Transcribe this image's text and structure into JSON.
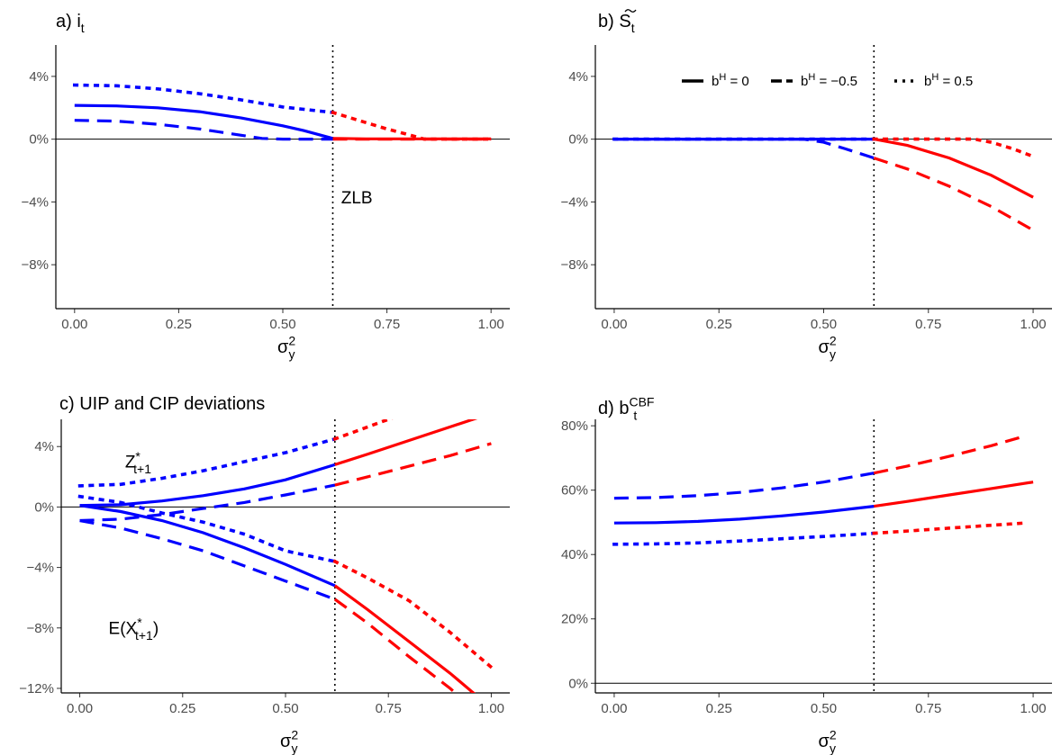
{
  "colors": {
    "pre_zlb": "#0000ff",
    "post_zlb": "#ff0000",
    "axis": "#000000",
    "tick_text": "#4d4d4d"
  },
  "legend": {
    "items": [
      {
        "key": "solid",
        "label_base": "b",
        "label_sup": "H",
        "label_rest": " = 0"
      },
      {
        "key": "dashed",
        "label_base": "b",
        "label_sup": "H",
        "label_rest": " = −0.5"
      },
      {
        "key": "dotted",
        "label_base": "b",
        "label_sup": "H",
        "label_rest": " = 0.5"
      }
    ],
    "placement": "top-center of panel b"
  },
  "chart_data": [
    {
      "id": "a",
      "type": "line",
      "title": {
        "prefix": "a) ",
        "base": "i",
        "sub": "t",
        "sup": "",
        "tilde": false
      },
      "xlabel": {
        "base": "σ",
        "sub": "y",
        "sup": "2"
      },
      "xlim": [
        0,
        1
      ],
      "ylim": [
        -10.8,
        6
      ],
      "xticks": [
        0,
        0.25,
        0.5,
        0.75,
        1
      ],
      "xtick_labels": [
        "0.00",
        "0.25",
        "0.50",
        "0.75",
        "1.00"
      ],
      "yticks": [
        4,
        0,
        -4,
        -8
      ],
      "ytick_labels": [
        "4%",
        "0%",
        "−4%",
        "−8%"
      ],
      "hline": 0,
      "vline": 0.62,
      "annotations": [
        {
          "text": "ZLB",
          "x": 0.64,
          "y": -4.1
        }
      ],
      "series": [
        {
          "style": "solid",
          "x": [
            0,
            0.1,
            0.2,
            0.3,
            0.4,
            0.5,
            0.55,
            0.62,
            0.7,
            0.8,
            0.9,
            1.0
          ],
          "y": [
            2.15,
            2.12,
            2.0,
            1.75,
            1.35,
            0.85,
            0.55,
            0.05,
            0.02,
            0.02,
            0.02,
            0.02
          ]
        },
        {
          "style": "dashed",
          "x": [
            0,
            0.1,
            0.2,
            0.3,
            0.4,
            0.45,
            0.5,
            0.55,
            0.62,
            0.7,
            0.8,
            0.9,
            1.0
          ],
          "y": [
            1.2,
            1.15,
            0.95,
            0.65,
            0.25,
            0.05,
            0.0,
            0.0,
            0.0,
            0.0,
            0.0,
            0.0,
            0.0
          ]
        },
        {
          "style": "dotted",
          "x": [
            0,
            0.1,
            0.2,
            0.3,
            0.4,
            0.5,
            0.62,
            0.7,
            0.75,
            0.8,
            0.84,
            0.9,
            1.0
          ],
          "y": [
            3.45,
            3.4,
            3.2,
            2.9,
            2.5,
            2.05,
            1.7,
            1.05,
            0.65,
            0.3,
            0.0,
            0.0,
            0.0
          ]
        }
      ]
    },
    {
      "id": "b",
      "type": "line",
      "title": {
        "prefix": "b) ",
        "base": "S",
        "sub": "t",
        "sup": "",
        "tilde": true
      },
      "xlabel": {
        "base": "σ",
        "sub": "y",
        "sup": "2"
      },
      "xlim": [
        0,
        1
      ],
      "ylim": [
        -10.8,
        6
      ],
      "xticks": [
        0,
        0.25,
        0.5,
        0.75,
        1
      ],
      "xtick_labels": [
        "0.00",
        "0.25",
        "0.50",
        "0.75",
        "1.00"
      ],
      "yticks": [
        4,
        0,
        -4,
        -8
      ],
      "ytick_labels": [
        "4%",
        "0%",
        "−4%",
        "−8%"
      ],
      "hline": 0,
      "vline": 0.62,
      "annotations": [],
      "series": [
        {
          "style": "solid",
          "x": [
            0,
            0.2,
            0.4,
            0.62,
            0.7,
            0.8,
            0.9,
            1.0
          ],
          "y": [
            0,
            0,
            0,
            0,
            -0.4,
            -1.2,
            -2.3,
            -3.7
          ]
        },
        {
          "style": "dashed",
          "x": [
            0,
            0.2,
            0.4,
            0.45,
            0.5,
            0.55,
            0.62,
            0.7,
            0.8,
            0.9,
            1.0
          ],
          "y": [
            0,
            0,
            0,
            0,
            -0.2,
            -0.6,
            -1.2,
            -1.9,
            -3.0,
            -4.3,
            -5.8
          ]
        },
        {
          "style": "dotted",
          "x": [
            0,
            0.2,
            0.4,
            0.62,
            0.7,
            0.8,
            0.86,
            0.9,
            0.95,
            1.0
          ],
          "y": [
            0,
            0,
            0,
            0,
            0,
            0,
            0,
            -0.2,
            -0.6,
            -1.1
          ]
        }
      ]
    },
    {
      "id": "c",
      "type": "line",
      "title": {
        "prefix": "",
        "base": "c) UIP and CIP deviations",
        "sub": "",
        "sup": "",
        "tilde": false
      },
      "xlabel": {
        "base": "σ",
        "sub": "y",
        "sup": "2"
      },
      "xlim": [
        0,
        1
      ],
      "ylim": [
        -12.3,
        5.8
      ],
      "xticks": [
        0,
        0.25,
        0.5,
        0.75,
        1
      ],
      "xtick_labels": [
        "0.00",
        "0.25",
        "0.50",
        "0.75",
        "1.00"
      ],
      "yticks": [
        4,
        0,
        -4,
        -8,
        -12
      ],
      "ytick_labels": [
        "4%",
        "0%",
        "−4%",
        "−8%",
        "−12%"
      ],
      "hline": 0,
      "vline": 0.62,
      "annotations": [
        {
          "text": "Z",
          "sub": "t+1",
          "sup": "*",
          "x": 0.11,
          "y": 2.6
        },
        {
          "text": "E(X",
          "sub": "t+1",
          "sup": "*",
          "suffix": ")",
          "x": 0.07,
          "y": -8.4
        }
      ],
      "series": [
        {
          "style": "solid",
          "group": "Z",
          "x": [
            0,
            0.1,
            0.2,
            0.3,
            0.4,
            0.5,
            0.62,
            0.7,
            0.8,
            0.9,
            1.0
          ],
          "y": [
            0.1,
            0.15,
            0.4,
            0.75,
            1.2,
            1.8,
            2.8,
            3.5,
            4.4,
            5.3,
            6.2
          ]
        },
        {
          "style": "dashed",
          "group": "Z",
          "x": [
            0,
            0.1,
            0.2,
            0.3,
            0.4,
            0.5,
            0.62,
            0.7,
            0.8,
            0.9,
            1.0
          ],
          "y": [
            -0.9,
            -0.8,
            -0.5,
            -0.1,
            0.3,
            0.8,
            1.45,
            2.0,
            2.7,
            3.4,
            4.2
          ]
        },
        {
          "style": "dotted",
          "group": "Z",
          "x": [
            0,
            0.1,
            0.2,
            0.3,
            0.4,
            0.5,
            0.62,
            0.7,
            0.75,
            0.8
          ],
          "y": [
            1.4,
            1.5,
            1.9,
            2.4,
            3.0,
            3.6,
            4.5,
            5.3,
            5.8,
            6.3
          ]
        },
        {
          "style": "solid",
          "group": "E",
          "x": [
            0,
            0.1,
            0.2,
            0.3,
            0.4,
            0.5,
            0.62,
            0.7,
            0.8,
            0.9,
            1.0
          ],
          "y": [
            0.1,
            -0.3,
            -0.9,
            -1.7,
            -2.7,
            -3.8,
            -5.2,
            -6.8,
            -8.9,
            -11.0,
            -13.3
          ]
        },
        {
          "style": "dashed",
          "group": "E",
          "x": [
            0,
            0.1,
            0.2,
            0.3,
            0.4,
            0.5,
            0.62,
            0.7,
            0.8,
            0.9,
            0.95
          ],
          "y": [
            -0.9,
            -1.4,
            -2.1,
            -2.9,
            -3.9,
            -4.9,
            -6.1,
            -7.7,
            -9.9,
            -12.0,
            -13.2
          ]
        },
        {
          "style": "dotted",
          "group": "E",
          "x": [
            0,
            0.1,
            0.2,
            0.3,
            0.4,
            0.5,
            0.62,
            0.7,
            0.8,
            0.9,
            1.0
          ],
          "y": [
            0.7,
            0.3,
            -0.4,
            -1.0,
            -1.8,
            -2.9,
            -3.6,
            -4.7,
            -6.2,
            -8.3,
            -10.6
          ]
        }
      ]
    },
    {
      "id": "d",
      "type": "line",
      "title": {
        "prefix": "d) ",
        "base": "b",
        "sub": "t",
        "sup": "CBF",
        "tilde": false
      },
      "xlabel": {
        "base": "σ",
        "sub": "y",
        "sup": "2"
      },
      "xlim": [
        0,
        1
      ],
      "ylim": [
        -3,
        82
      ],
      "xticks": [
        0,
        0.25,
        0.5,
        0.75,
        1
      ],
      "xtick_labels": [
        "0.00",
        "0.25",
        "0.50",
        "0.75",
        "1.00"
      ],
      "yticks": [
        80,
        60,
        40,
        20,
        0
      ],
      "ytick_labels": [
        "80%",
        "60%",
        "40%",
        "20%",
        "0%"
      ],
      "hline": 0,
      "vline": 0.62,
      "annotations": [],
      "series": [
        {
          "style": "solid",
          "x": [
            0,
            0.1,
            0.2,
            0.3,
            0.4,
            0.5,
            0.62,
            0.7,
            0.8,
            0.9,
            1.0
          ],
          "y": [
            49.8,
            49.9,
            50.3,
            51.0,
            52.0,
            53.2,
            55.0,
            56.5,
            58.5,
            60.5,
            62.5
          ]
        },
        {
          "style": "dashed",
          "x": [
            0,
            0.1,
            0.2,
            0.3,
            0.4,
            0.5,
            0.62,
            0.7,
            0.8,
            0.9,
            0.98
          ],
          "y": [
            57.5,
            57.7,
            58.3,
            59.3,
            60.7,
            62.5,
            65.3,
            67.5,
            70.5,
            73.8,
            76.8
          ]
        },
        {
          "style": "dotted",
          "x": [
            0,
            0.1,
            0.2,
            0.3,
            0.4,
            0.5,
            0.62,
            0.7,
            0.8,
            0.9,
            0.98
          ],
          "y": [
            43.2,
            43.3,
            43.6,
            44.2,
            44.9,
            45.6,
            46.6,
            47.3,
            48.2,
            49.1,
            49.8
          ]
        }
      ]
    }
  ]
}
